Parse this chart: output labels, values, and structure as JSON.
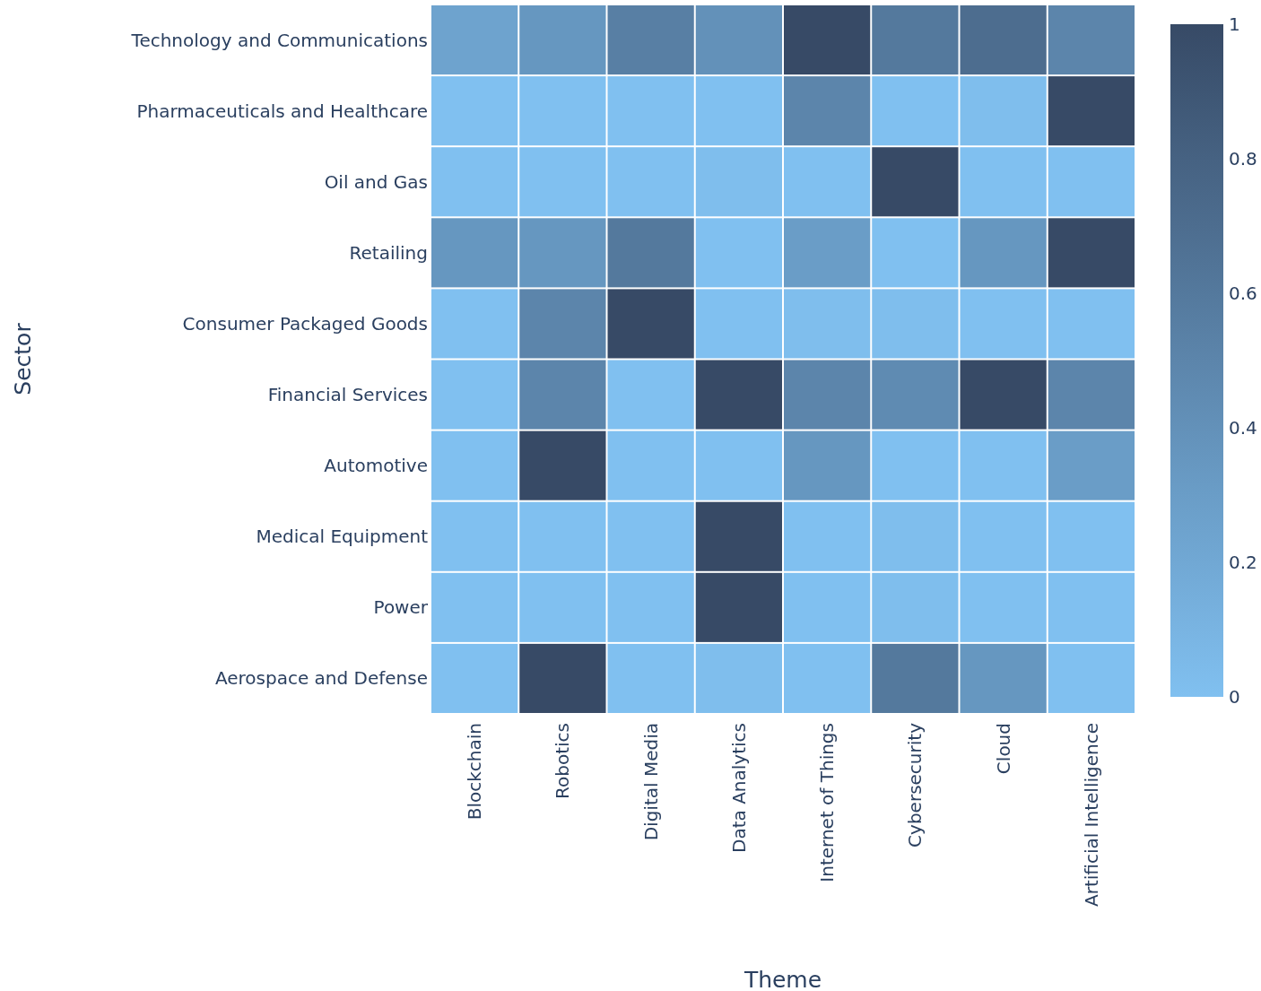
{
  "chart_data": {
    "type": "heatmap",
    "xlabel": "Theme",
    "ylabel": "Sector",
    "categories": [
      "Blockchain",
      "Robotics",
      "Digital Media",
      "Data Analytics",
      "Internet of Things",
      "Cybersecurity",
      "Cloud",
      "Artificial Intelligence"
    ],
    "y_categories": [
      "Technology and Communications",
      "Pharmaceuticals and Healthcare",
      "Oil and Gas",
      "Retailing",
      "Consumer Packaged Goods",
      "Financial Services",
      "Automotive",
      "Medical Equipment",
      "Power",
      "Aerospace and Defense"
    ],
    "cells": [
      [
        0.25,
        0.35,
        0.55,
        0.4,
        1,
        0.6,
        0.7,
        0.5
      ],
      [
        0,
        0,
        0,
        0,
        0.5,
        0,
        0.02,
        1
      ],
      [
        0,
        0,
        0,
        0.02,
        0,
        1,
        0,
        0
      ],
      [
        0.35,
        0.35,
        0.6,
        0,
        0.3,
        0,
        0.35,
        1
      ],
      [
        0,
        0.5,
        1,
        0,
        0.02,
        0.02,
        0,
        0
      ],
      [
        0,
        0.5,
        0,
        1,
        0.5,
        0.45,
        1,
        0.5
      ],
      [
        0,
        1,
        0,
        0,
        0.35,
        0,
        0,
        0.3
      ],
      [
        0,
        0,
        0,
        1,
        0,
        0.02,
        0,
        0
      ],
      [
        0,
        0,
        0,
        1,
        0,
        0.02,
        0,
        0
      ],
      [
        0,
        1,
        0,
        0.02,
        0,
        0.6,
        0.35,
        0
      ]
    ],
    "clim": [
      0,
      1
    ],
    "cticks": [
      0,
      0.2,
      0.4,
      0.6,
      0.8,
      1
    ]
  }
}
